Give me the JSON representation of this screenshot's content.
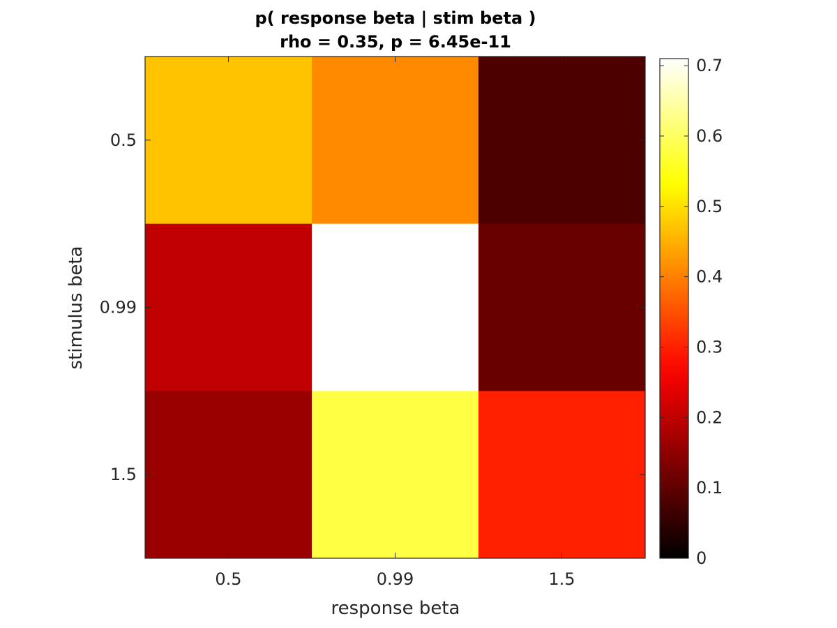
{
  "chart_data": {
    "type": "heatmap",
    "title": "p( response beta | stim beta )",
    "subtitle": "rho = 0.35, p = 6.45e-11",
    "xlabel": "response beta",
    "ylabel": "stimulus beta",
    "x_categories": [
      "0.5",
      "0.99",
      "1.5"
    ],
    "y_categories": [
      "0.5",
      "0.99",
      "1.5"
    ],
    "values": [
      [
        0.47,
        0.41,
        0.08
      ],
      [
        0.2,
        0.71,
        0.11
      ],
      [
        0.16,
        0.58,
        0.3
      ]
    ],
    "colormap": "hot",
    "clim": [
      0,
      0.71
    ],
    "colorbar": {
      "ticks": [
        0,
        0.1,
        0.2,
        0.3,
        0.4,
        0.5,
        0.6,
        0.7
      ],
      "tick_labels": [
        "0",
        "0.1",
        "0.2",
        "0.3",
        "0.4",
        "0.5",
        "0.6",
        "0.7"
      ],
      "position": "right"
    },
    "grid": false
  }
}
